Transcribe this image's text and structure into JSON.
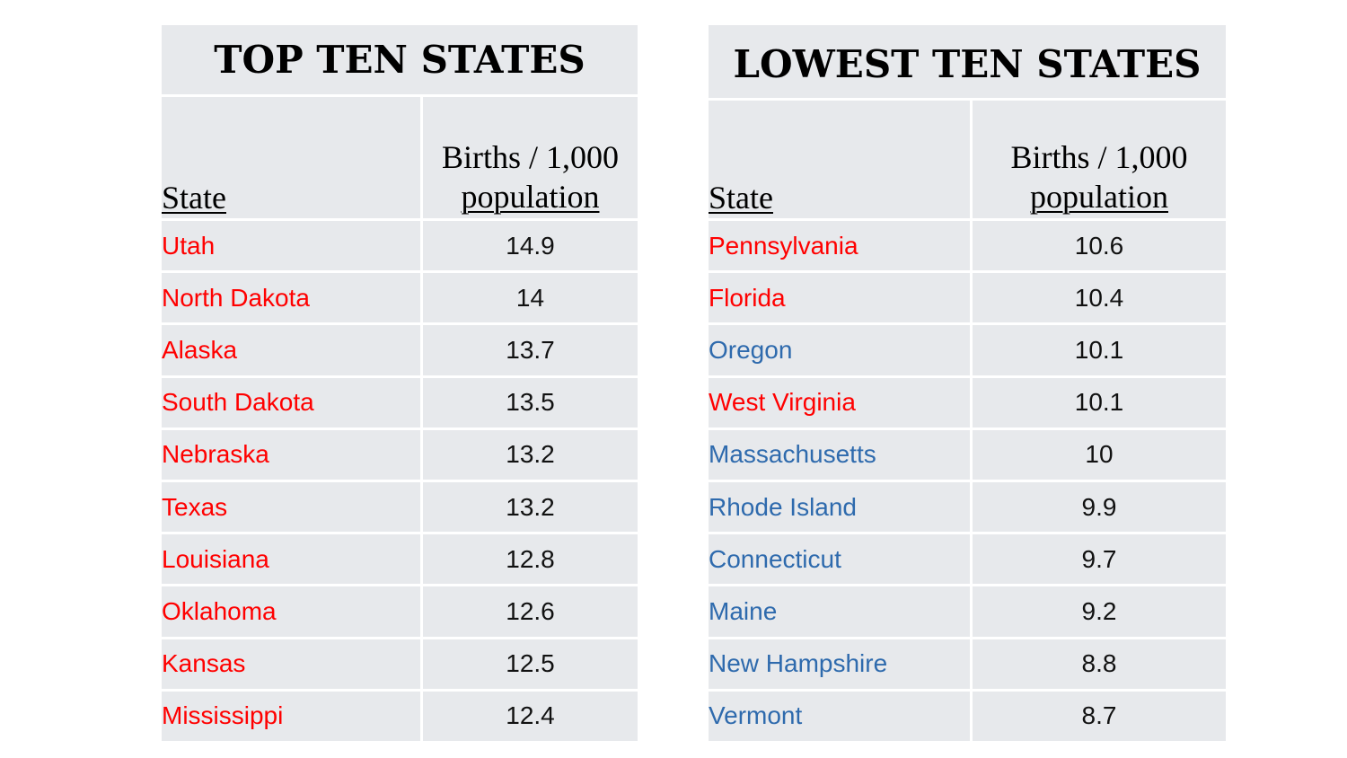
{
  "colors": {
    "red_state": "#ff0000",
    "blue_state": "#2e6aad",
    "panel_bg": "#e7e9ec"
  },
  "left": {
    "title": "TOP TEN STATES",
    "col_state": "State",
    "col_value_line1": "Births / 1,000",
    "col_value_line2": "population",
    "rows": [
      {
        "state": "Utah",
        "value": "14.9",
        "color": "#ff0000"
      },
      {
        "state": "North Dakota",
        "value": "14",
        "color": "#ff0000"
      },
      {
        "state": "Alaska",
        "value": "13.7",
        "color": "#ff0000"
      },
      {
        "state": "South Dakota",
        "value": "13.5",
        "color": "#ff0000"
      },
      {
        "state": "Nebraska",
        "value": "13.2",
        "color": "#ff0000"
      },
      {
        "state": "Texas",
        "value": "13.2",
        "color": "#ff0000"
      },
      {
        "state": "Louisiana",
        "value": "12.8",
        "color": "#ff0000"
      },
      {
        "state": "Oklahoma",
        "value": "12.6",
        "color": "#ff0000"
      },
      {
        "state": "Kansas",
        "value": "12.5",
        "color": "#ff0000"
      },
      {
        "state": "Mississippi",
        "value": "12.4",
        "color": "#ff0000"
      }
    ]
  },
  "right": {
    "title": "LOWEST TEN STATES",
    "col_state": "State",
    "col_value_line1": "Births / 1,000",
    "col_value_line2": "population",
    "rows": [
      {
        "state": "Pennsylvania",
        "value": "10.6",
        "color": "#ff0000"
      },
      {
        "state": "Florida",
        "value": "10.4",
        "color": "#ff0000"
      },
      {
        "state": "Oregon",
        "value": "10.1",
        "color": "#2e6aad"
      },
      {
        "state": "West Virginia",
        "value": "10.1",
        "color": "#ff0000"
      },
      {
        "state": "Massachusetts",
        "value": "10",
        "color": "#2e6aad"
      },
      {
        "state": "Rhode Island",
        "value": "9.9",
        "color": "#2e6aad"
      },
      {
        "state": "Connecticut",
        "value": "9.7",
        "color": "#2e6aad"
      },
      {
        "state": "Maine",
        "value": "9.2",
        "color": "#2e6aad"
      },
      {
        "state": "New Hampshire",
        "value": "8.8",
        "color": "#2e6aad"
      },
      {
        "state": "Vermont",
        "value": "8.7",
        "color": "#2e6aad"
      }
    ]
  }
}
